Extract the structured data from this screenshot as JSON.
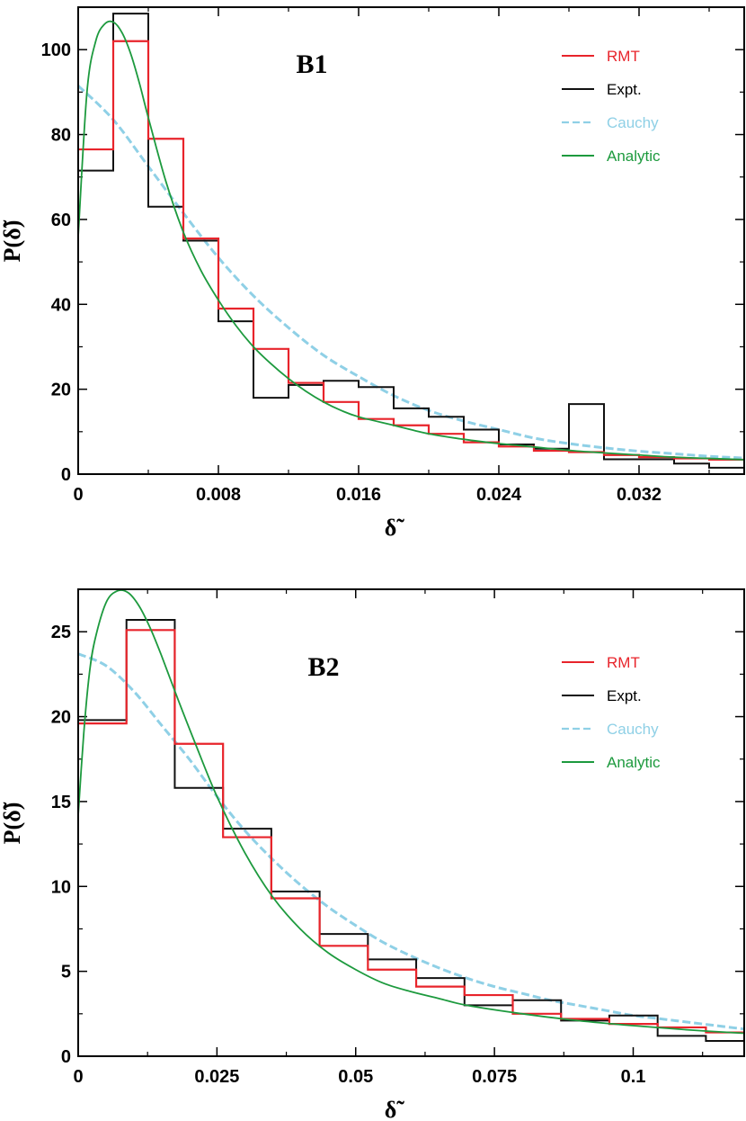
{
  "chart_data": [
    {
      "type": "line",
      "title": "B1",
      "xlabel": "δ̃",
      "ylabel": "P(δ̃)",
      "xlim": [
        0,
        0.038
      ],
      "ylim": [
        0,
        110
      ],
      "xticks": [
        0,
        0.008,
        0.016,
        0.024,
        0.032
      ],
      "xtick_labels": [
        "0",
        "0.008",
        "0.016",
        "0.024",
        "0.032"
      ],
      "yticks": [
        0,
        20,
        40,
        60,
        80,
        100
      ],
      "ytick_labels": [
        "0",
        "20",
        "40",
        "60",
        "80",
        "100"
      ],
      "legend_position": "top-right",
      "series": [
        {
          "name": "RMT",
          "style": "step-histogram",
          "color": "#e8242b",
          "edges": [
            0,
            0.002,
            0.004,
            0.006,
            0.008,
            0.01,
            0.012,
            0.014,
            0.016,
            0.018,
            0.02,
            0.022,
            0.024,
            0.026,
            0.028,
            0.03,
            0.032,
            0.034,
            0.036,
            0.038
          ],
          "values": [
            76.5,
            102,
            79,
            55.5,
            39,
            29.5,
            21.5,
            17,
            13,
            11.5,
            9.5,
            7.5,
            6.5,
            5.5,
            5.2,
            4.5,
            4,
            3.7,
            3.4
          ]
        },
        {
          "name": "Expt.",
          "style": "step-histogram",
          "color": "#111111",
          "edges": [
            0,
            0.002,
            0.004,
            0.006,
            0.008,
            0.01,
            0.012,
            0.014,
            0.016,
            0.018,
            0.02,
            0.022,
            0.024,
            0.026,
            0.028,
            0.03,
            0.032,
            0.034,
            0.036,
            0.038
          ],
          "values": [
            71.5,
            108.5,
            63,
            55,
            36,
            18,
            21,
            22,
            20.5,
            15.5,
            13.5,
            10.5,
            7,
            6,
            16.5,
            3.5,
            3.5,
            2.5,
            1.5
          ]
        },
        {
          "name": "Cauchy",
          "style": "dashed",
          "color": "#8fd0e6",
          "x": [
            0,
            0.002,
            0.004,
            0.006,
            0.008,
            0.01,
            0.012,
            0.014,
            0.016,
            0.018,
            0.02,
            0.022,
            0.024,
            0.026,
            0.028,
            0.03,
            0.032,
            0.034,
            0.036,
            0.038
          ],
          "y": [
            91.5,
            83.5,
            72.5,
            61.5,
            51,
            42,
            34.5,
            28,
            23,
            18.5,
            15,
            12.5,
            10.5,
            8.5,
            7.2,
            6.2,
            5.4,
            4.8,
            4.2,
            3.8
          ]
        },
        {
          "name": "Analytic",
          "style": "solid",
          "color": "#1d9a3e",
          "x": [
            0,
            0.0005,
            0.001,
            0.0015,
            0.002,
            0.0025,
            0.003,
            0.0035,
            0.004,
            0.005,
            0.006,
            0.007,
            0.008,
            0.009,
            0.01,
            0.011,
            0.012,
            0.013,
            0.014,
            0.015,
            0.016,
            0.018,
            0.02,
            0.022,
            0.024,
            0.026,
            0.028,
            0.03,
            0.032,
            0.034,
            0.036,
            0.038
          ],
          "y": [
            56,
            90,
            102,
            106,
            106.5,
            104,
            99,
            92,
            84,
            69,
            57,
            48,
            41,
            35,
            30,
            26,
            22.5,
            19.5,
            17,
            15,
            13.5,
            11.5,
            9.5,
            8.2,
            7.2,
            6.4,
            5.6,
            5,
            4.5,
            4,
            3.7,
            3.4
          ]
        }
      ]
    },
    {
      "type": "line",
      "title": "B2",
      "xlabel": "δ̃",
      "ylabel": "P(δ̃)",
      "xlim": [
        0,
        0.12
      ],
      "ylim": [
        0,
        27.5
      ],
      "xticks": [
        0,
        0.025,
        0.05,
        0.075,
        0.1
      ],
      "xtick_labels": [
        "0",
        "0.025",
        "0.05",
        "0.075",
        "0.1"
      ],
      "yticks": [
        0,
        5,
        10,
        15,
        20,
        25
      ],
      "ytick_labels": [
        "0",
        "5",
        "10",
        "15",
        "20",
        "25"
      ],
      "legend_position": "top-right",
      "series": [
        {
          "name": "RMT",
          "style": "step-histogram",
          "color": "#e8242b",
          "edges": [
            0,
            0.0087,
            0.0174,
            0.0261,
            0.0348,
            0.0435,
            0.0522,
            0.0609,
            0.0696,
            0.0783,
            0.087,
            0.0957,
            0.1044,
            0.1131,
            0.12
          ],
          "values": [
            19.6,
            25.1,
            18.4,
            12.9,
            9.3,
            6.5,
            5.1,
            4.1,
            3.6,
            2.5,
            2.2,
            1.9,
            1.7,
            1.4
          ]
        },
        {
          "name": "Expt.",
          "style": "step-histogram",
          "color": "#111111",
          "edges": [
            0,
            0.0087,
            0.0174,
            0.0261,
            0.0348,
            0.0435,
            0.0522,
            0.0609,
            0.0696,
            0.0783,
            0.087,
            0.0957,
            0.1044,
            0.1131,
            0.12
          ],
          "values": [
            19.8,
            25.7,
            15.8,
            13.4,
            9.7,
            7.2,
            5.7,
            4.6,
            3.0,
            3.3,
            2.1,
            2.4,
            1.2,
            0.9
          ]
        },
        {
          "name": "Cauchy",
          "style": "dashed",
          "color": "#8fd0e6",
          "x": [
            0,
            0.005,
            0.01,
            0.015,
            0.02,
            0.025,
            0.03,
            0.035,
            0.04,
            0.045,
            0.05,
            0.055,
            0.06,
            0.065,
            0.07,
            0.075,
            0.08,
            0.085,
            0.09,
            0.095,
            0.1,
            0.105,
            0.11,
            0.115,
            0.12
          ],
          "y": [
            23.7,
            23,
            21.5,
            19.5,
            17.5,
            15.3,
            13.3,
            11.6,
            10.1,
            8.8,
            7.7,
            6.7,
            5.9,
            5.2,
            4.6,
            4.1,
            3.7,
            3.3,
            3.0,
            2.7,
            2.4,
            2.2,
            2.0,
            1.8,
            1.6
          ]
        },
        {
          "name": "Analytic",
          "style": "solid",
          "color": "#1d9a3e",
          "x": [
            0,
            0.001,
            0.002,
            0.003,
            0.005,
            0.007,
            0.009,
            0.011,
            0.013,
            0.015,
            0.018,
            0.021,
            0.025,
            0.03,
            0.035,
            0.04,
            0.045,
            0.05,
            0.055,
            0.06,
            0.065,
            0.07,
            0.08,
            0.09,
            0.1,
            0.11,
            0.12
          ],
          "y": [
            14.2,
            19,
            22.5,
            24.5,
            26.7,
            27.4,
            27.3,
            26.5,
            25.2,
            23.6,
            21,
            18.5,
            15.3,
            12,
            9.4,
            7.5,
            6.1,
            5.1,
            4.3,
            3.8,
            3.4,
            3.0,
            2.5,
            2.1,
            1.8,
            1.55,
            1.35
          ]
        }
      ]
    }
  ]
}
